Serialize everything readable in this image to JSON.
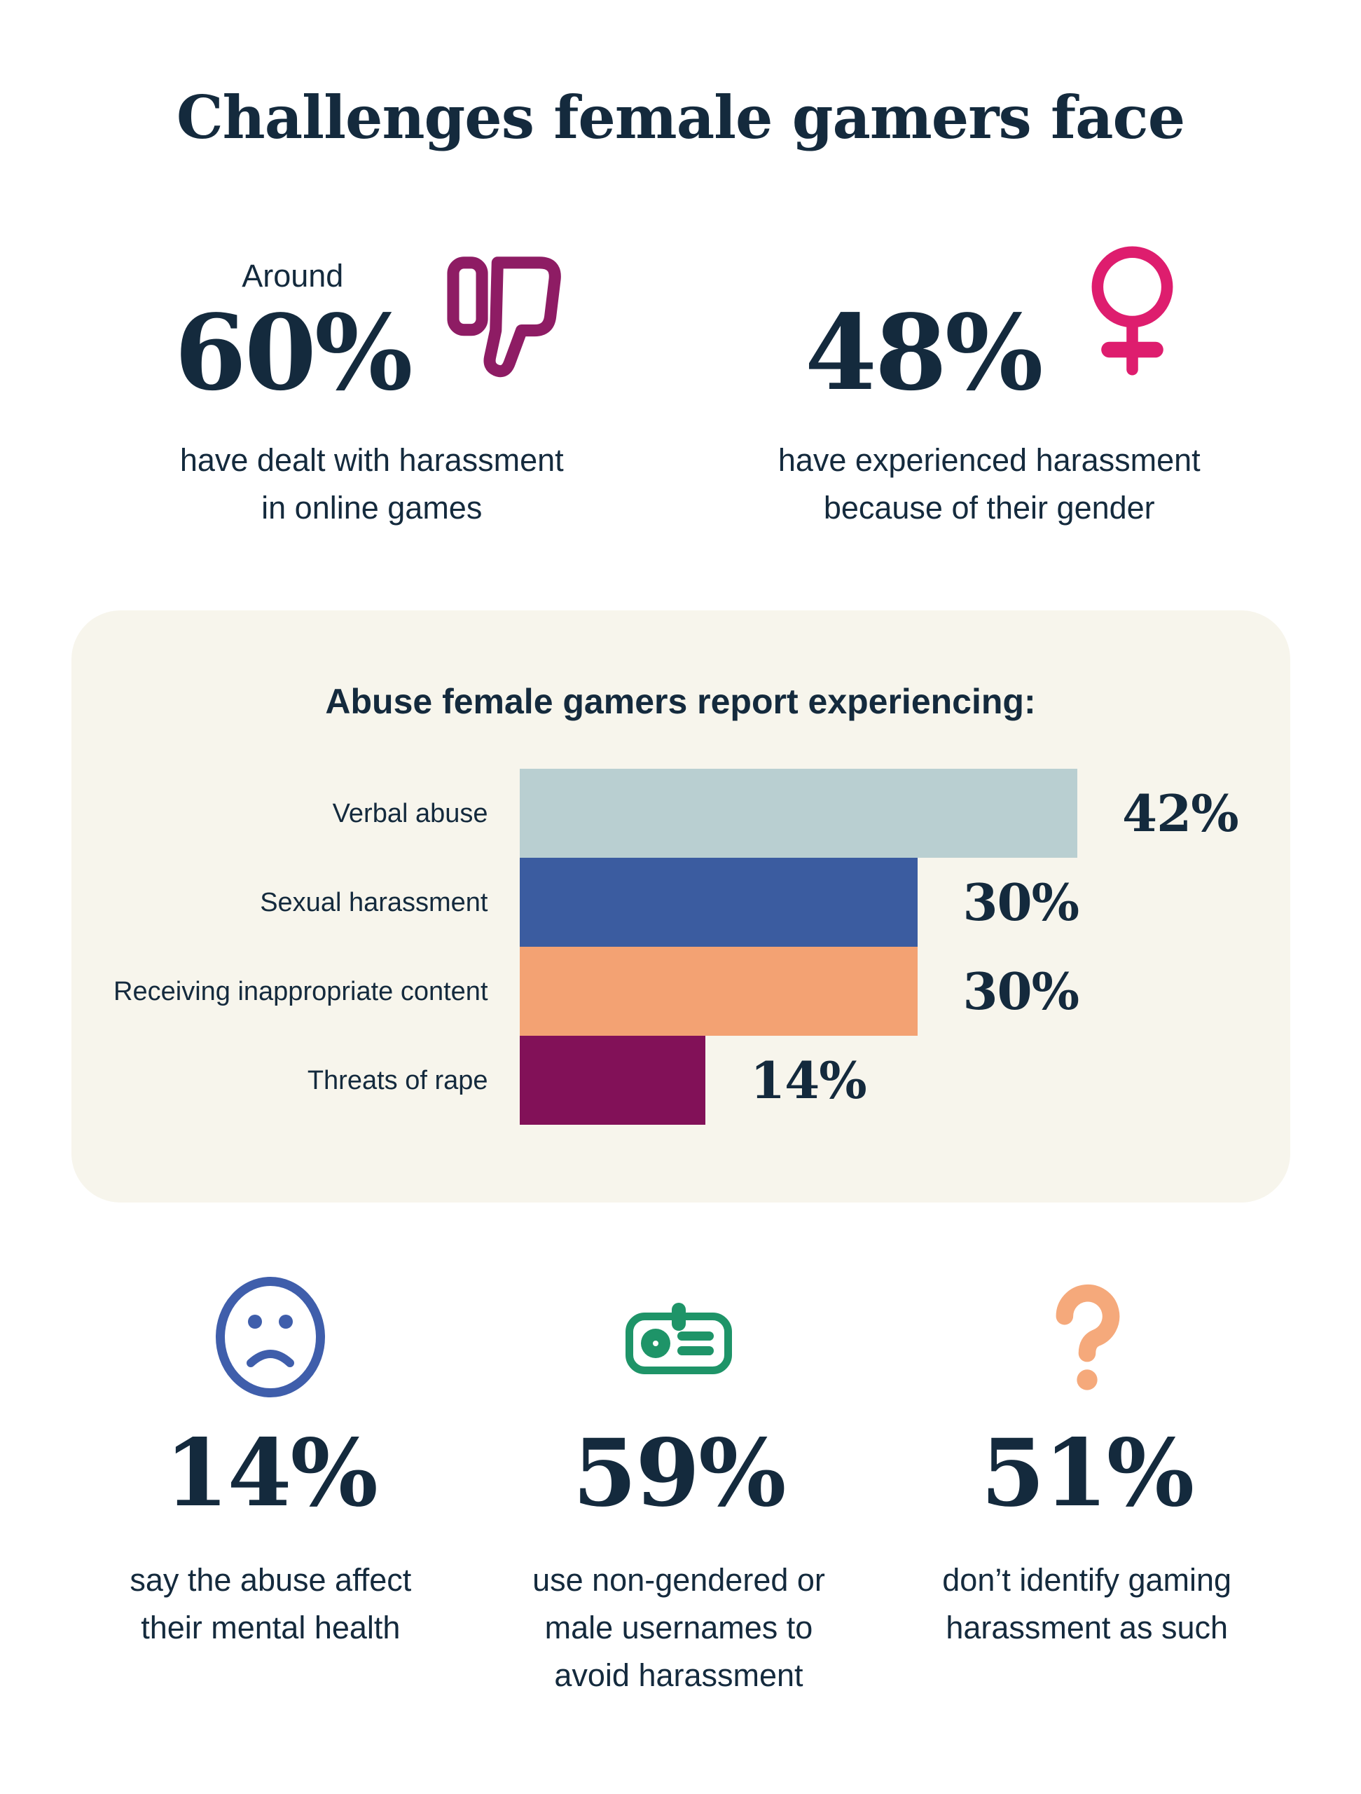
{
  "title": "Challenges female gamers face",
  "colors": {
    "navy": "#142A3D",
    "magenta": "#8E1C64",
    "pink": "#DE1D6E",
    "blue": "#3F5EAB",
    "green": "#1E9468",
    "orange": "#F5A97B",
    "panel_bg": "#F7F5EC",
    "page_bg": "#FFFFFF"
  },
  "top_stats": [
    {
      "prefix": "Around",
      "value": "60%",
      "icon": "thumbs-down-icon",
      "caption_lines": [
        "have dealt with harassment",
        "in online games"
      ]
    },
    {
      "prefix": "",
      "value": "48%",
      "icon": "female-symbol-icon",
      "caption_lines": [
        "have experienced harassment",
        "because of their gender"
      ]
    }
  ],
  "chart_data": {
    "type": "bar",
    "orientation": "horizontal",
    "title": "Abuse female gamers report experiencing:",
    "categories": [
      "Verbal abuse",
      "Sexual harassment",
      "Receiving inappropriate content",
      "Threats of rape"
    ],
    "values": [
      42,
      30,
      30,
      14
    ],
    "value_labels": [
      "42%",
      "30%",
      "30%",
      "14%"
    ],
    "unit": "%",
    "xlim": [
      0,
      58
    ],
    "grid": false,
    "legend": false,
    "value_label_position": "right-of-bar",
    "bar_colors": [
      "#B9CFD1",
      "#3B5CA0",
      "#F3A273",
      "#821158"
    ]
  },
  "bottom_stats": [
    {
      "icon": "sad-face-icon",
      "value": "14%",
      "caption_lines": [
        "say the abuse affect",
        "their mental health"
      ]
    },
    {
      "icon": "id-badge-icon",
      "value": "59%",
      "caption_lines": [
        "use non-gendered or",
        "male usernames to",
        "avoid harassment"
      ]
    },
    {
      "icon": "question-mark-icon",
      "value": "51%",
      "caption_lines": [
        "don’t identify gaming",
        "harassment as such"
      ]
    }
  ]
}
